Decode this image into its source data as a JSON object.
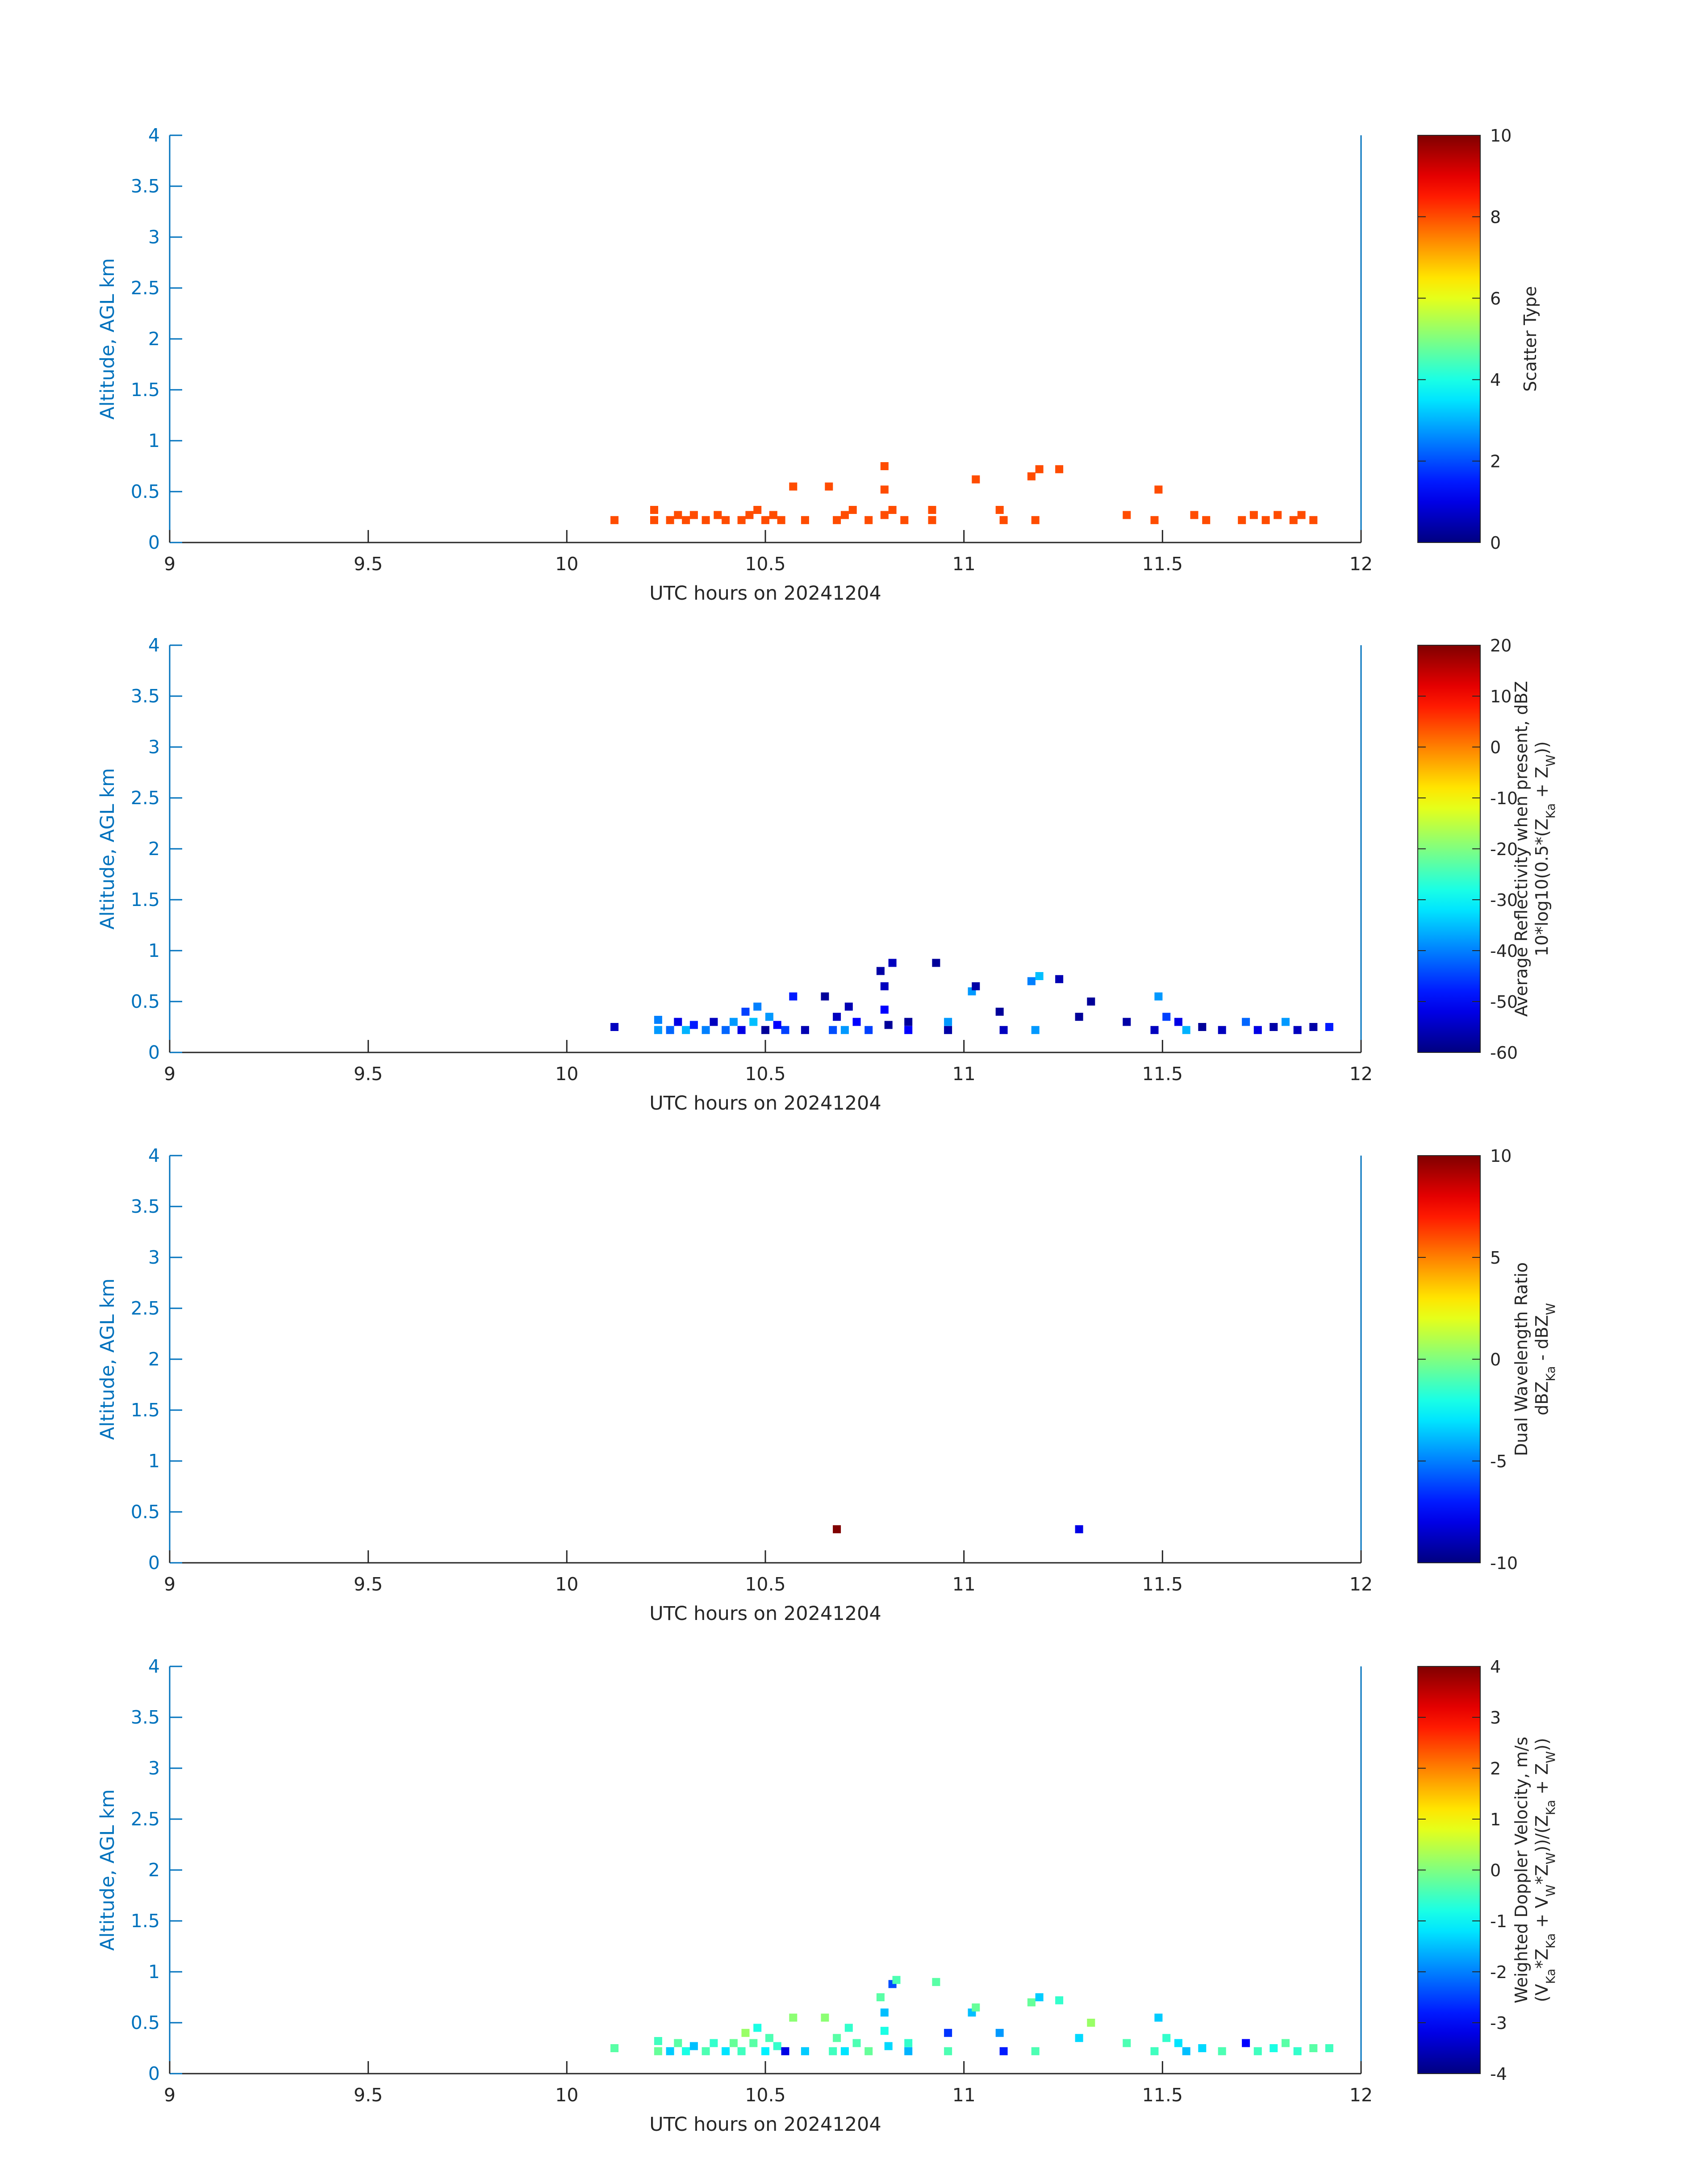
{
  "chart_data": [
    {
      "type": "heatmap",
      "xlabel": "UTC hours on 20241204",
      "ylabel": "Altitude, AGL km",
      "xlim": [
        9,
        12
      ],
      "ylim": [
        0,
        4
      ],
      "x_ticks": [
        "9",
        "9.5",
        "10",
        "10.5",
        "11",
        "11.5",
        "12"
      ],
      "y_ticks": [
        "0",
        "0.5",
        "1",
        "1.5",
        "2",
        "2.5",
        "3",
        "3.5",
        "4"
      ],
      "colorbar": {
        "label_lines": [
          "Scatter Type"
        ],
        "range": [
          0,
          10
        ],
        "ticks": [
          "0",
          "2",
          "4",
          "6",
          "8",
          "10"
        ],
        "colormap": "jet"
      },
      "color_value_note": "all plotted cells have scatter type 8",
      "cells": [
        [
          10.12,
          0.22,
          8
        ],
        [
          10.22,
          0.22,
          8
        ],
        [
          10.22,
          0.32,
          8
        ],
        [
          10.26,
          0.22,
          8
        ],
        [
          10.28,
          0.27,
          8
        ],
        [
          10.3,
          0.22,
          8
        ],
        [
          10.32,
          0.27,
          8
        ],
        [
          10.35,
          0.22,
          8
        ],
        [
          10.38,
          0.27,
          8
        ],
        [
          10.4,
          0.22,
          8
        ],
        [
          10.44,
          0.22,
          8
        ],
        [
          10.46,
          0.27,
          8
        ],
        [
          10.48,
          0.32,
          8
        ],
        [
          10.5,
          0.22,
          8
        ],
        [
          10.52,
          0.27,
          8
        ],
        [
          10.54,
          0.22,
          8
        ],
        [
          10.57,
          0.55,
          8
        ],
        [
          10.6,
          0.22,
          8
        ],
        [
          10.66,
          0.55,
          8
        ],
        [
          10.68,
          0.22,
          8
        ],
        [
          10.7,
          0.27,
          8
        ],
        [
          10.72,
          0.32,
          8
        ],
        [
          10.76,
          0.22,
          8
        ],
        [
          10.8,
          0.75,
          8
        ],
        [
          10.8,
          0.52,
          8
        ],
        [
          10.8,
          0.27,
          8
        ],
        [
          10.82,
          0.32,
          8
        ],
        [
          10.85,
          0.22,
          8
        ],
        [
          10.92,
          0.22,
          8
        ],
        [
          10.92,
          0.32,
          8
        ],
        [
          11.03,
          0.62,
          8
        ],
        [
          11.09,
          0.32,
          8
        ],
        [
          11.1,
          0.22,
          8
        ],
        [
          11.17,
          0.65,
          8
        ],
        [
          11.19,
          0.72,
          8
        ],
        [
          11.18,
          0.22,
          8
        ],
        [
          11.24,
          0.72,
          8
        ],
        [
          11.41,
          0.27,
          8
        ],
        [
          11.48,
          0.22,
          8
        ],
        [
          11.49,
          0.52,
          8
        ],
        [
          11.58,
          0.27,
          8
        ],
        [
          11.61,
          0.22,
          8
        ],
        [
          11.7,
          0.22,
          8
        ],
        [
          11.73,
          0.27,
          8
        ],
        [
          11.76,
          0.22,
          8
        ],
        [
          11.79,
          0.27,
          8
        ],
        [
          11.83,
          0.22,
          8
        ],
        [
          11.85,
          0.27,
          8
        ],
        [
          11.88,
          0.22,
          8
        ]
      ]
    },
    {
      "type": "heatmap",
      "xlabel": "UTC hours on 20241204",
      "ylabel": "Altitude, AGL km",
      "xlim": [
        9,
        12
      ],
      "ylim": [
        0,
        4
      ],
      "x_ticks": [
        "9",
        "9.5",
        "10",
        "10.5",
        "11",
        "11.5",
        "12"
      ],
      "y_ticks": [
        "0",
        "0.5",
        "1",
        "1.5",
        "2",
        "2.5",
        "3",
        "3.5",
        "4"
      ],
      "colorbar": {
        "label_lines": [
          "Average Reflectivity when present, dBZ",
          "10*log10(0.5*(Z",
          "Ka",
          " + Z",
          "W",
          "))"
        ],
        "range": [
          -60,
          20
        ],
        "ticks": [
          "-60",
          "-50",
          "-40",
          "-30",
          "-20",
          "-10",
          "0",
          "10",
          "20"
        ],
        "colormap": "jet"
      },
      "cells": [
        [
          10.12,
          0.25,
          -55
        ],
        [
          10.23,
          0.22,
          -38
        ],
        [
          10.23,
          0.32,
          -40
        ],
        [
          10.26,
          0.22,
          -42
        ],
        [
          10.28,
          0.3,
          -52
        ],
        [
          10.3,
          0.22,
          -36
        ],
        [
          10.32,
          0.27,
          -48
        ],
        [
          10.35,
          0.22,
          -40
        ],
        [
          10.37,
          0.3,
          -55
        ],
        [
          10.4,
          0.22,
          -42
        ],
        [
          10.42,
          0.3,
          -38
        ],
        [
          10.44,
          0.22,
          -52
        ],
        [
          10.45,
          0.4,
          -45
        ],
        [
          10.47,
          0.3,
          -35
        ],
        [
          10.48,
          0.45,
          -40
        ],
        [
          10.5,
          0.22,
          -58
        ],
        [
          10.51,
          0.35,
          -38
        ],
        [
          10.53,
          0.27,
          -50
        ],
        [
          10.55,
          0.22,
          -45
        ],
        [
          10.57,
          0.55,
          -48
        ],
        [
          10.6,
          0.22,
          -56
        ],
        [
          10.65,
          0.55,
          -58
        ],
        [
          10.67,
          0.22,
          -44
        ],
        [
          10.68,
          0.35,
          -55
        ],
        [
          10.7,
          0.22,
          -38
        ],
        [
          10.71,
          0.45,
          -56
        ],
        [
          10.73,
          0.3,
          -50
        ],
        [
          10.76,
          0.22,
          -45
        ],
        [
          10.79,
          0.8,
          -57
        ],
        [
          10.8,
          0.65,
          -55
        ],
        [
          10.8,
          0.42,
          -50
        ],
        [
          10.81,
          0.27,
          -58
        ],
        [
          10.82,
          0.88,
          -55
        ],
        [
          10.86,
          0.3,
          -58
        ],
        [
          10.86,
          0.22,
          -50
        ],
        [
          10.93,
          0.88,
          -58
        ],
        [
          10.96,
          0.3,
          -38
        ],
        [
          10.96,
          0.22,
          -57
        ],
        [
          11.02,
          0.6,
          -38
        ],
        [
          11.03,
          0.65,
          -57
        ],
        [
          11.09,
          0.4,
          -58
        ],
        [
          11.1,
          0.22,
          -55
        ],
        [
          11.17,
          0.7,
          -40
        ],
        [
          11.19,
          0.75,
          -35
        ],
        [
          11.18,
          0.22,
          -38
        ],
        [
          11.24,
          0.72,
          -56
        ],
        [
          11.29,
          0.35,
          -58
        ],
        [
          11.32,
          0.5,
          -58
        ],
        [
          11.41,
          0.3,
          -57
        ],
        [
          11.48,
          0.22,
          -55
        ],
        [
          11.49,
          0.55,
          -38
        ],
        [
          11.51,
          0.35,
          -45
        ],
        [
          11.54,
          0.3,
          -52
        ],
        [
          11.56,
          0.22,
          -36
        ],
        [
          11.6,
          0.25,
          -58
        ],
        [
          11.65,
          0.22,
          -55
        ],
        [
          11.71,
          0.3,
          -42
        ],
        [
          11.74,
          0.22,
          -52
        ],
        [
          11.78,
          0.25,
          -57
        ],
        [
          11.81,
          0.3,
          -38
        ],
        [
          11.84,
          0.22,
          -55
        ],
        [
          11.88,
          0.25,
          -57
        ],
        [
          11.92,
          0.25,
          -48
        ]
      ]
    },
    {
      "type": "heatmap",
      "xlabel": "UTC hours on 20241204",
      "ylabel": "Altitude, AGL km",
      "xlim": [
        9,
        12
      ],
      "ylim": [
        0,
        4
      ],
      "x_ticks": [
        "9",
        "9.5",
        "10",
        "10.5",
        "11",
        "11.5",
        "12"
      ],
      "y_ticks": [
        "0",
        "0.5",
        "1",
        "1.5",
        "2",
        "2.5",
        "3",
        "3.5",
        "4"
      ],
      "colorbar": {
        "label_lines": [
          "Dual Wavelength Ratio",
          "dBZ",
          "Ka",
          " - dBZ",
          "W"
        ],
        "range": [
          -10,
          10
        ],
        "ticks": [
          "-10",
          "-5",
          "0",
          "5",
          "10"
        ],
        "colormap": "jet"
      },
      "cells": [
        [
          10.68,
          0.33,
          10
        ],
        [
          11.29,
          0.33,
          -8
        ]
      ]
    },
    {
      "type": "heatmap",
      "xlabel": "UTC hours on 20241204",
      "ylabel": "Altitude, AGL km",
      "xlim": [
        9,
        12
      ],
      "ylim": [
        0,
        4
      ],
      "x_ticks": [
        "9",
        "9.5",
        "10",
        "10.5",
        "11",
        "11.5",
        "12"
      ],
      "y_ticks": [
        "0",
        "0.5",
        "1",
        "1.5",
        "2",
        "2.5",
        "3",
        "3.5",
        "4"
      ],
      "colorbar": {
        "label_lines": [
          "Weighted Doppler Velocity, m/s",
          "(V",
          "Ka",
          "*Z",
          "Ka",
          " + V",
          "W",
          "*Z",
          "W",
          "))/(Z",
          "Ka",
          " + Z",
          "W",
          "))"
        ],
        "range": [
          -4,
          4
        ],
        "ticks": [
          "-4",
          "-3",
          "-2",
          "-1",
          "0",
          "1",
          "2",
          "3",
          "4"
        ],
        "colormap": "jet"
      },
      "cells": [
        [
          10.12,
          0.25,
          -0.3
        ],
        [
          10.23,
          0.22,
          -0.2
        ],
        [
          10.23,
          0.32,
          -0.5
        ],
        [
          10.26,
          0.22,
          -1.4
        ],
        [
          10.28,
          0.3,
          -0.3
        ],
        [
          10.3,
          0.22,
          -0.8
        ],
        [
          10.32,
          0.27,
          -1.5
        ],
        [
          10.35,
          0.22,
          -0.4
        ],
        [
          10.37,
          0.3,
          -0.6
        ],
        [
          10.4,
          0.22,
          -1.2
        ],
        [
          10.42,
          0.3,
          -0.2
        ],
        [
          10.44,
          0.22,
          -0.5
        ],
        [
          10.45,
          0.4,
          0.2
        ],
        [
          10.47,
          0.3,
          -0.3
        ],
        [
          10.48,
          0.45,
          -0.8
        ],
        [
          10.5,
          0.22,
          -1.1
        ],
        [
          10.51,
          0.35,
          -0.4
        ],
        [
          10.53,
          0.27,
          -0.6
        ],
        [
          10.55,
          0.22,
          -3.2
        ],
        [
          10.57,
          0.55,
          0.1
        ],
        [
          10.6,
          0.22,
          -1.4
        ],
        [
          10.65,
          0.55,
          0.1
        ],
        [
          10.67,
          0.22,
          -0.5
        ],
        [
          10.68,
          0.35,
          -0.3
        ],
        [
          10.7,
          0.22,
          -1.2
        ],
        [
          10.71,
          0.45,
          -0.6
        ],
        [
          10.73,
          0.3,
          -0.4
        ],
        [
          10.76,
          0.22,
          -0.2
        ],
        [
          10.79,
          0.75,
          -0.3
        ],
        [
          10.8,
          0.6,
          -1.5
        ],
        [
          10.8,
          0.42,
          -0.8
        ],
        [
          10.81,
          0.27,
          -1.3
        ],
        [
          10.82,
          0.88,
          -2.4
        ],
        [
          10.83,
          0.92,
          -0.4
        ],
        [
          10.86,
          0.3,
          -0.6
        ],
        [
          10.86,
          0.22,
          -1.6
        ],
        [
          10.93,
          0.9,
          -0.3
        ],
        [
          10.96,
          0.4,
          -2.6
        ],
        [
          10.96,
          0.22,
          -0.4
        ],
        [
          11.02,
          0.6,
          -1.5
        ],
        [
          11.03,
          0.65,
          -0.2
        ],
        [
          11.09,
          0.4,
          -1.8
        ],
        [
          11.1,
          0.22,
          -2.8
        ],
        [
          11.17,
          0.7,
          -0.2
        ],
        [
          11.19,
          0.75,
          -1.4
        ],
        [
          11.18,
          0.22,
          -0.4
        ],
        [
          11.24,
          0.72,
          -0.6
        ],
        [
          11.29,
          0.35,
          -1.3
        ],
        [
          11.32,
          0.5,
          0.2
        ],
        [
          11.41,
          0.3,
          -0.4
        ],
        [
          11.48,
          0.22,
          -0.5
        ],
        [
          11.49,
          0.55,
          -1.4
        ],
        [
          11.51,
          0.35,
          -0.6
        ],
        [
          11.54,
          0.3,
          -1.2
        ],
        [
          11.56,
          0.22,
          -1.5
        ],
        [
          11.6,
          0.25,
          -1.3
        ],
        [
          11.65,
          0.22,
          -0.4
        ],
        [
          11.71,
          0.3,
          -3.0
        ],
        [
          11.74,
          0.22,
          -0.5
        ],
        [
          11.78,
          0.25,
          -0.8
        ],
        [
          11.81,
          0.3,
          -0.3
        ],
        [
          11.84,
          0.22,
          -0.6
        ],
        [
          11.88,
          0.25,
          -0.3
        ],
        [
          11.92,
          0.25,
          -0.5
        ]
      ]
    }
  ]
}
